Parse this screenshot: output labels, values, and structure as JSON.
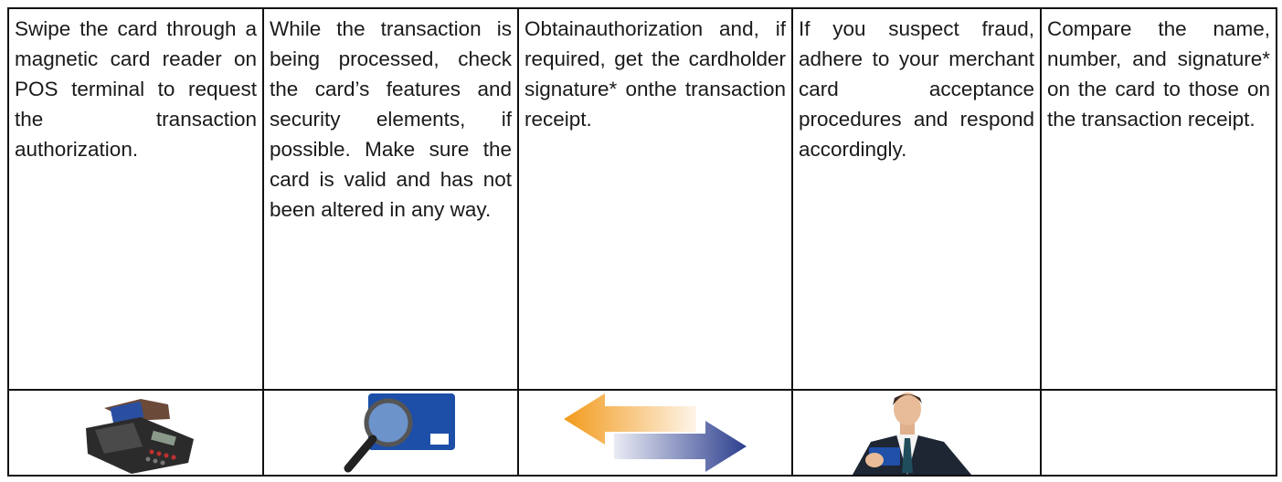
{
  "table": {
    "rows": [
      [
        "Swipe the card through a magnetic card reader on POS terminal to request the transaction authorization.",
        "While the transaction is being processed, check the card’s features and security elements, if possible. Make sure the card is valid and has not been altered in any way.",
        "Obtainauthorization and, if required, get the cardholder signature* onthe transaction receipt.",
        "If you suspect fraud, adhere to your merchant card acceptance procedures and respond accordingly.",
        "Compare the name, number, and signature* on the card to those on the transaction receipt."
      ]
    ]
  }
}
